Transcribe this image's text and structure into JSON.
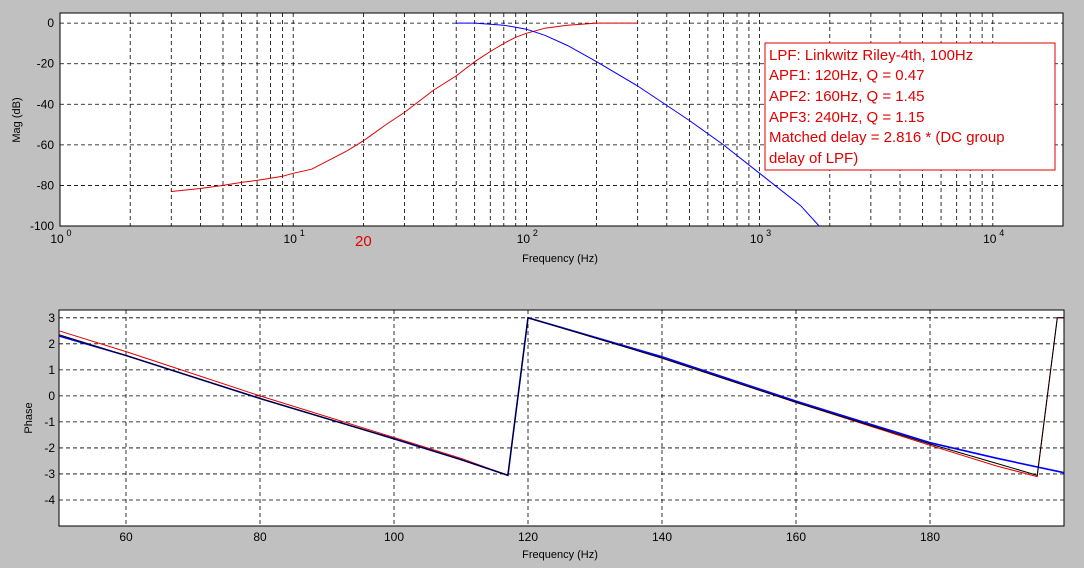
{
  "colors": {
    "background": "#c0c0c0",
    "plot_bg": "#ffffff",
    "blue": "#0000ff",
    "red": "#e00000",
    "black": "#000000"
  },
  "chart_data": [
    {
      "type": "line",
      "title": "",
      "xlabel": "Frequency (Hz)",
      "ylabel": "Mag (dB)",
      "xscale": "log",
      "xlim": [
        1,
        20000
      ],
      "ylim": [
        -100,
        5
      ],
      "grid": true,
      "yticks": [
        0,
        -20,
        -40,
        -60,
        -80,
        -100
      ],
      "ytick_labels": [
        "0",
        "-20",
        "-40",
        "-60",
        "-80",
        "-100"
      ],
      "xticks": [
        1,
        10,
        100,
        1000,
        10000
      ],
      "xtick_base": "10",
      "xtick_exponents": [
        "0",
        "1",
        "2",
        "3",
        "4"
      ],
      "annotations": [
        {
          "text": "20",
          "x": 20,
          "color": "#e00000"
        }
      ],
      "legend": {
        "placement": "top-right",
        "lines": [
          "LPF: Linkwitz Riley-4th, 100Hz",
          "APF1: 120Hz, Q = 0.47",
          "APF2: 160Hz, Q = 1.45",
          "APF3: 240Hz, Q = 1.15",
          "Matched delay = 2.816 * (DC group",
          "delay of LPF)"
        ]
      },
      "series": [
        {
          "color": "#e00000",
          "x": [
            3,
            4,
            5,
            6,
            7,
            8,
            9,
            10,
            12,
            14,
            17,
            20,
            25,
            30,
            40,
            50,
            60,
            70,
            80,
            90,
            100,
            120,
            150,
            200,
            250,
            300
          ],
          "y": [
            -83,
            -81.5,
            -80,
            -78.5,
            -77.5,
            -76.5,
            -75.5,
            -74,
            -72,
            -68,
            -63,
            -58,
            -50,
            -44,
            -33,
            -26,
            -19,
            -14,
            -10,
            -7,
            -5,
            -2.5,
            -1,
            0,
            0,
            0
          ]
        },
        {
          "color": "#0000ff",
          "x": [
            50,
            60,
            70,
            80,
            90,
            100,
            120,
            150,
            200,
            300,
            500,
            700,
            1000,
            1500,
            1800
          ],
          "y": [
            0,
            0,
            -0.5,
            -1,
            -2,
            -3,
            -6,
            -11,
            -19,
            -31,
            -48,
            -60,
            -74,
            -90,
            -100
          ]
        }
      ]
    },
    {
      "type": "line",
      "title": "",
      "xlabel": "Frequency (Hz)",
      "ylabel": "Phase",
      "xlim": [
        50,
        200
      ],
      "ylim": [
        -5,
        3.3
      ],
      "grid": true,
      "xticks": [
        60,
        80,
        100,
        120,
        140,
        160,
        180
      ],
      "xtick_labels": [
        "60",
        "80",
        "100",
        "120",
        "140",
        "160",
        "180"
      ],
      "yticks": [
        3,
        2,
        1,
        0,
        -1,
        -2,
        -3,
        -4
      ],
      "ytick_labels": [
        "3",
        "2",
        "1",
        "0",
        "-1",
        "-2",
        "-3",
        "-4"
      ],
      "series": [
        {
          "color": "#e00000",
          "x": [
            50,
            60,
            80,
            100,
            110,
            117,
            120,
            140,
            160,
            180,
            190,
            196,
            199,
            200
          ],
          "y": [
            2.5,
            1.7,
            0.0,
            -1.6,
            -2.4,
            -3.05,
            3.0,
            1.45,
            -0.25,
            -1.9,
            -2.7,
            -3.1,
            3.0,
            3.0
          ]
        },
        {
          "color": "#0000ff",
          "x": [
            50,
            60,
            80,
            100,
            110,
            117,
            120,
            140,
            160,
            180,
            190,
            200
          ],
          "y": [
            2.3,
            1.55,
            -0.1,
            -1.65,
            -2.45,
            -3.05,
            3.0,
            1.5,
            -0.2,
            -1.8,
            -2.4,
            -2.95
          ]
        },
        {
          "color": "#000000",
          "x": [
            50,
            60,
            80,
            100,
            110,
            117,
            120,
            140,
            160,
            180,
            190,
            196,
            199,
            200
          ],
          "y": [
            2.35,
            1.55,
            -0.1,
            -1.65,
            -2.45,
            -3.05,
            3.0,
            1.45,
            -0.25,
            -1.85,
            -2.6,
            -3.05,
            3.0,
            3.0
          ]
        }
      ]
    }
  ]
}
